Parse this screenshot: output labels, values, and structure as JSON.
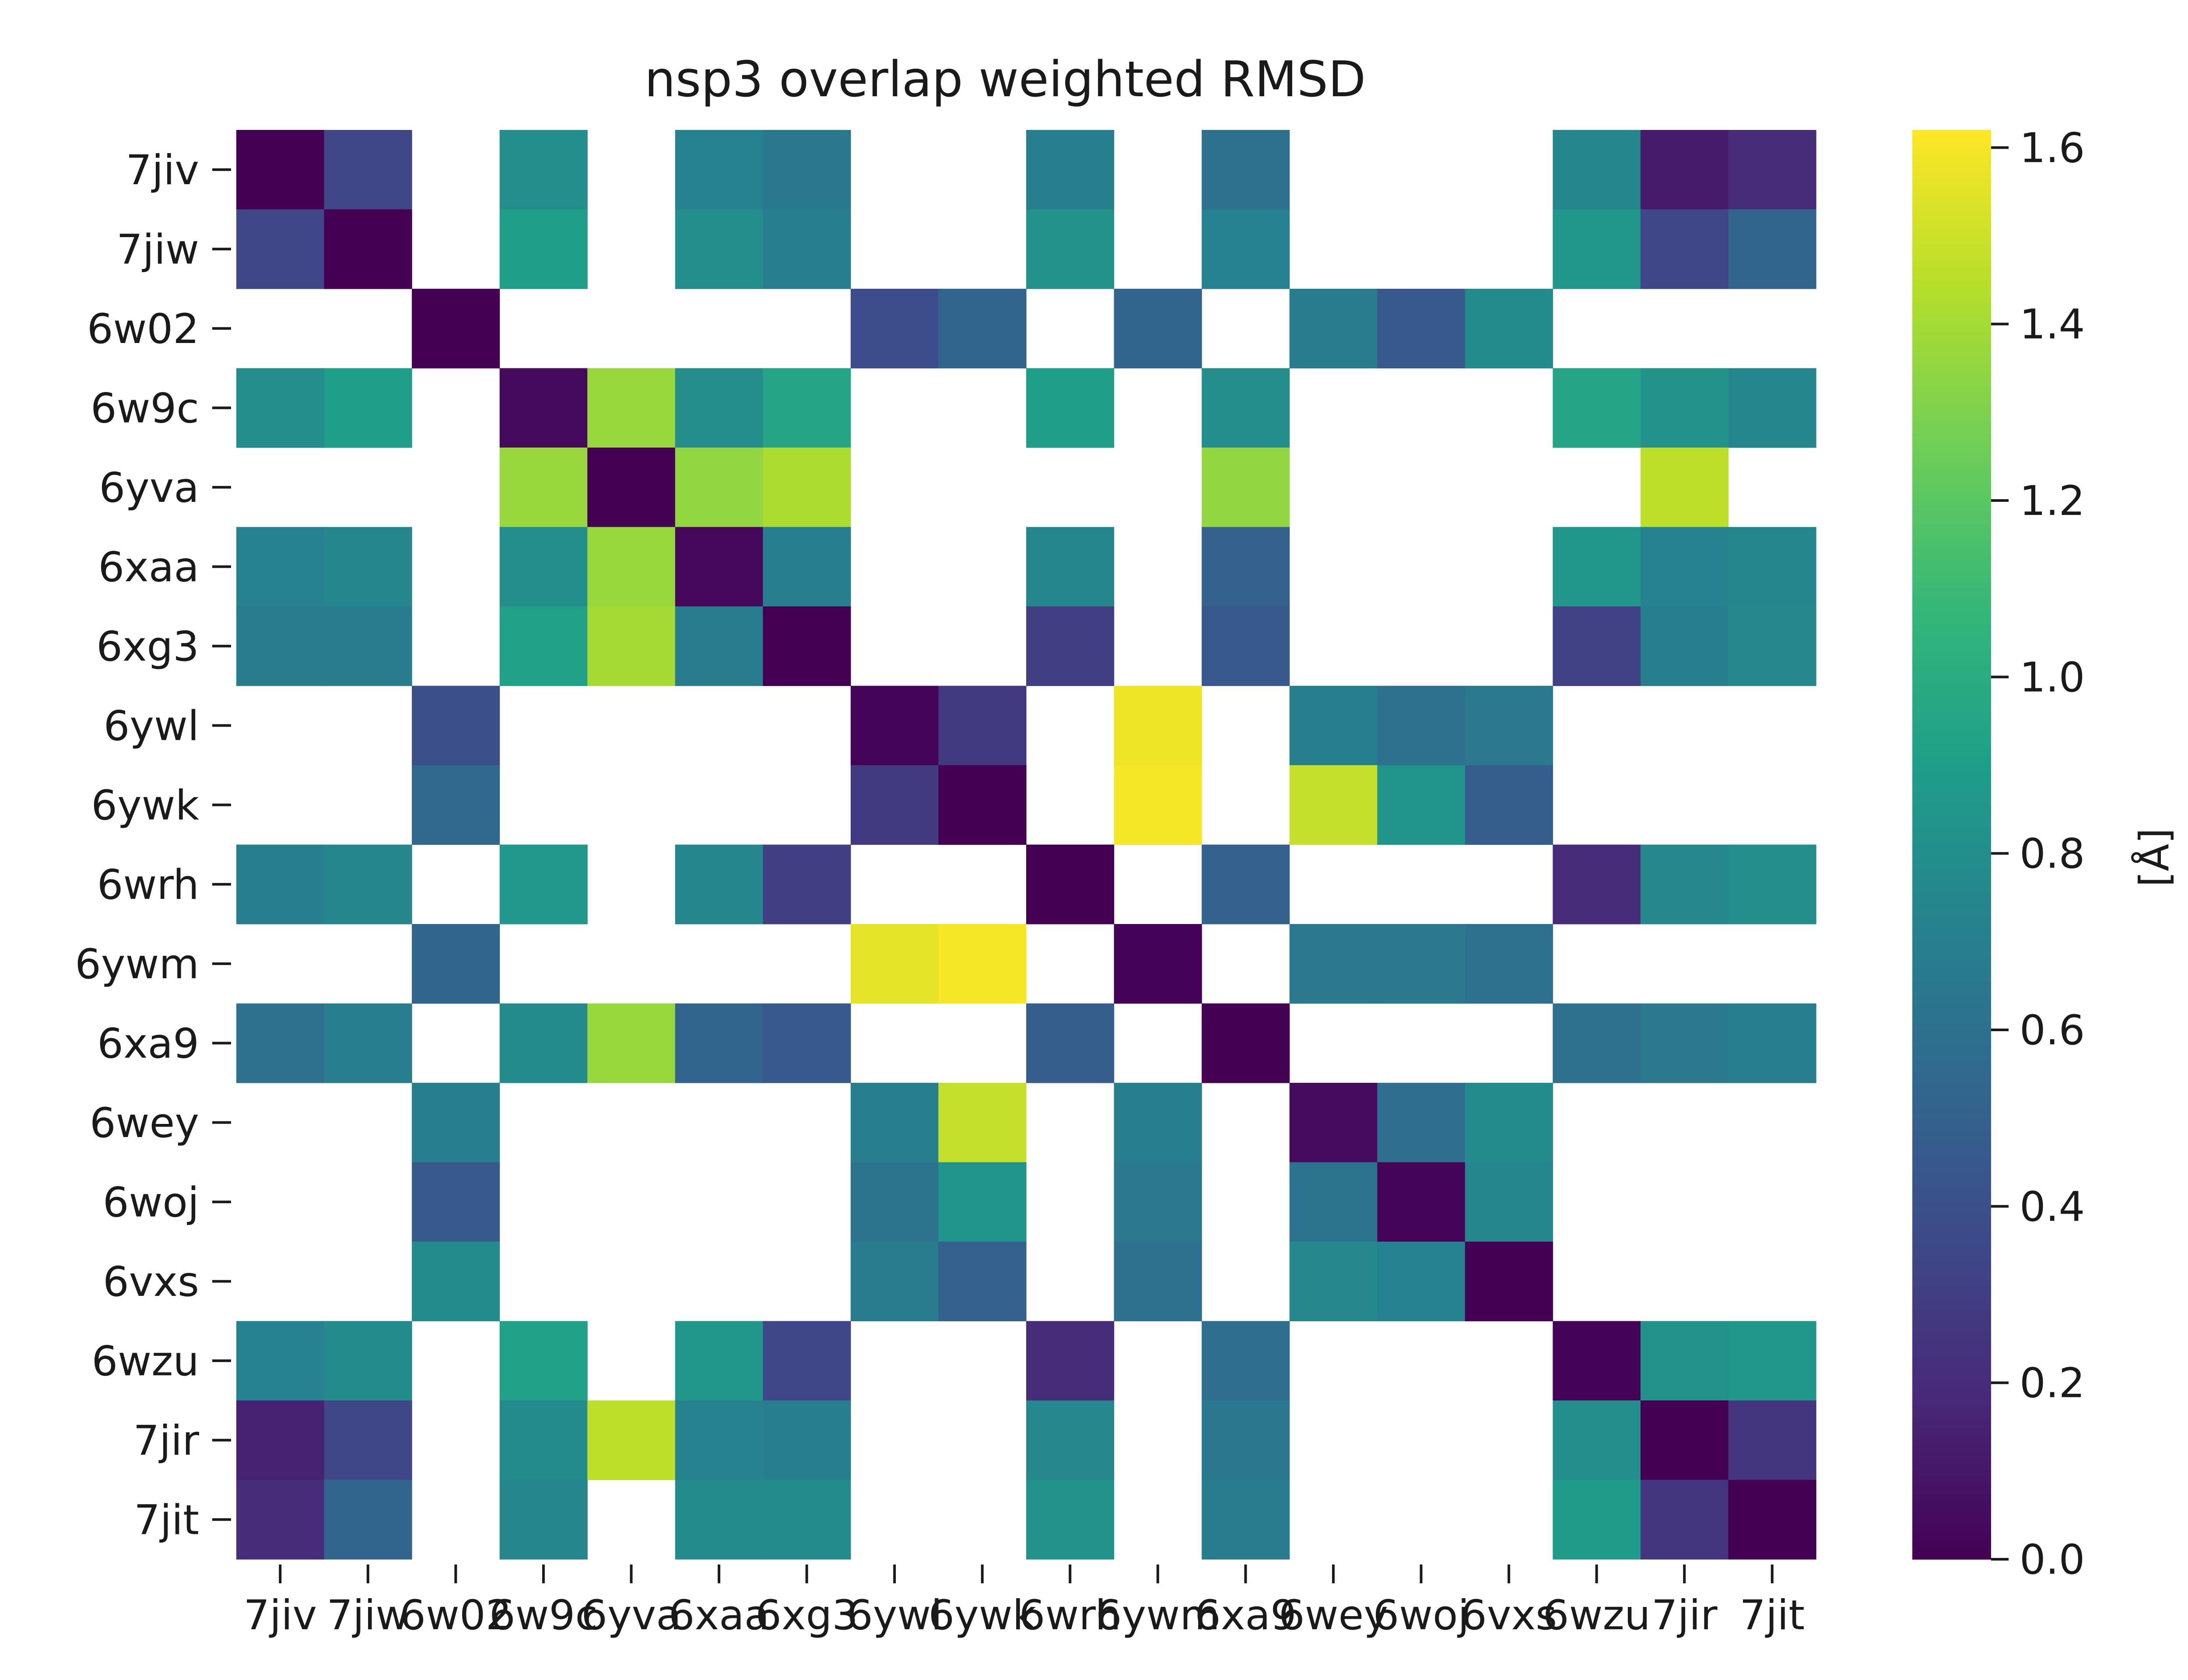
{
  "chart_data": {
    "type": "heatmap",
    "title": "nsp3 overlap weighted RMSD",
    "labels": [
      "7jiv",
      "7jiw",
      "6w02",
      "6w9c",
      "6yva",
      "6xaa",
      "6xg3",
      "6ywl",
      "6ywk",
      "6wrh",
      "6ywm",
      "6xa9",
      "6wey",
      "6woj",
      "6vxs",
      "6wzu",
      "7jir",
      "7jit"
    ],
    "colorbar": {
      "label": "[Å]",
      "min": 0.0,
      "max": 1.62,
      "ticks": [
        "0.0",
        "0.2",
        "0.4",
        "0.6",
        "0.8",
        "1.0",
        "1.2",
        "1.4",
        "1.6"
      ],
      "colormap": "viridis"
    },
    "matrix": [
      [
        0.0,
        0.35,
        null,
        0.8,
        null,
        0.72,
        0.65,
        null,
        null,
        0.7,
        null,
        0.6,
        null,
        null,
        null,
        0.75,
        0.12,
        0.2
      ],
      [
        0.35,
        0.0,
        null,
        0.9,
        null,
        0.8,
        0.7,
        null,
        null,
        0.82,
        null,
        0.72,
        null,
        null,
        null,
        0.85,
        0.35,
        0.52
      ],
      [
        null,
        null,
        0.0,
        null,
        null,
        null,
        null,
        0.38,
        0.52,
        null,
        0.52,
        null,
        0.68,
        0.45,
        0.78,
        null,
        null,
        null
      ],
      [
        0.8,
        0.9,
        null,
        0.04,
        1.37,
        0.8,
        0.95,
        null,
        null,
        0.9,
        null,
        0.8,
        null,
        null,
        null,
        0.95,
        0.82,
        0.75
      ],
      [
        null,
        null,
        null,
        1.37,
        0.0,
        1.35,
        1.42,
        null,
        null,
        null,
        null,
        1.35,
        null,
        null,
        null,
        null,
        1.46,
        null
      ],
      [
        0.72,
        0.75,
        null,
        0.8,
        1.37,
        0.03,
        0.7,
        null,
        null,
        0.75,
        null,
        0.5,
        null,
        null,
        null,
        0.85,
        0.72,
        0.75
      ],
      [
        0.68,
        0.68,
        null,
        0.92,
        1.4,
        0.68,
        0.0,
        null,
        null,
        0.3,
        null,
        0.45,
        null,
        null,
        null,
        0.32,
        0.7,
        0.76
      ],
      [
        null,
        null,
        0.4,
        null,
        null,
        null,
        null,
        0.02,
        0.28,
        null,
        1.58,
        null,
        0.7,
        0.6,
        0.66,
        null,
        null,
        null
      ],
      [
        null,
        null,
        0.55,
        null,
        null,
        null,
        null,
        0.28,
        0.0,
        null,
        1.6,
        null,
        1.48,
        0.84,
        0.48,
        null,
        null,
        null
      ],
      [
        0.7,
        0.75,
        null,
        0.86,
        null,
        0.75,
        0.3,
        null,
        null,
        0.0,
        null,
        0.5,
        null,
        null,
        null,
        0.2,
        0.76,
        0.8
      ],
      [
        null,
        null,
        0.52,
        null,
        null,
        null,
        null,
        1.56,
        1.6,
        null,
        0.01,
        null,
        0.66,
        0.66,
        0.6,
        null,
        null,
        null
      ],
      [
        0.6,
        0.7,
        null,
        0.78,
        1.37,
        0.52,
        0.45,
        null,
        null,
        0.48,
        null,
        0.0,
        null,
        null,
        null,
        0.6,
        0.66,
        0.7
      ],
      [
        null,
        null,
        0.7,
        null,
        null,
        null,
        null,
        0.7,
        1.48,
        null,
        0.7,
        null,
        0.05,
        0.58,
        0.78,
        null,
        null,
        null
      ],
      [
        null,
        null,
        0.45,
        null,
        null,
        null,
        null,
        0.62,
        0.84,
        null,
        0.66,
        null,
        0.62,
        0.02,
        0.75,
        null,
        null,
        null
      ],
      [
        null,
        null,
        0.78,
        null,
        null,
        null,
        null,
        0.68,
        0.5,
        null,
        0.6,
        null,
        0.76,
        0.72,
        0.0,
        null,
        null,
        null
      ],
      [
        0.72,
        0.78,
        null,
        0.92,
        null,
        0.85,
        0.35,
        null,
        null,
        0.2,
        null,
        0.58,
        null,
        null,
        null,
        0.01,
        0.82,
        0.85
      ],
      [
        0.15,
        0.35,
        null,
        0.78,
        1.46,
        0.72,
        0.7,
        null,
        null,
        0.76,
        null,
        0.65,
        null,
        null,
        null,
        0.8,
        0.0,
        0.25
      ],
      [
        0.2,
        0.52,
        null,
        0.75,
        null,
        0.78,
        0.78,
        null,
        null,
        0.82,
        null,
        0.68,
        null,
        null,
        null,
        0.88,
        0.25,
        0.0
      ]
    ]
  }
}
